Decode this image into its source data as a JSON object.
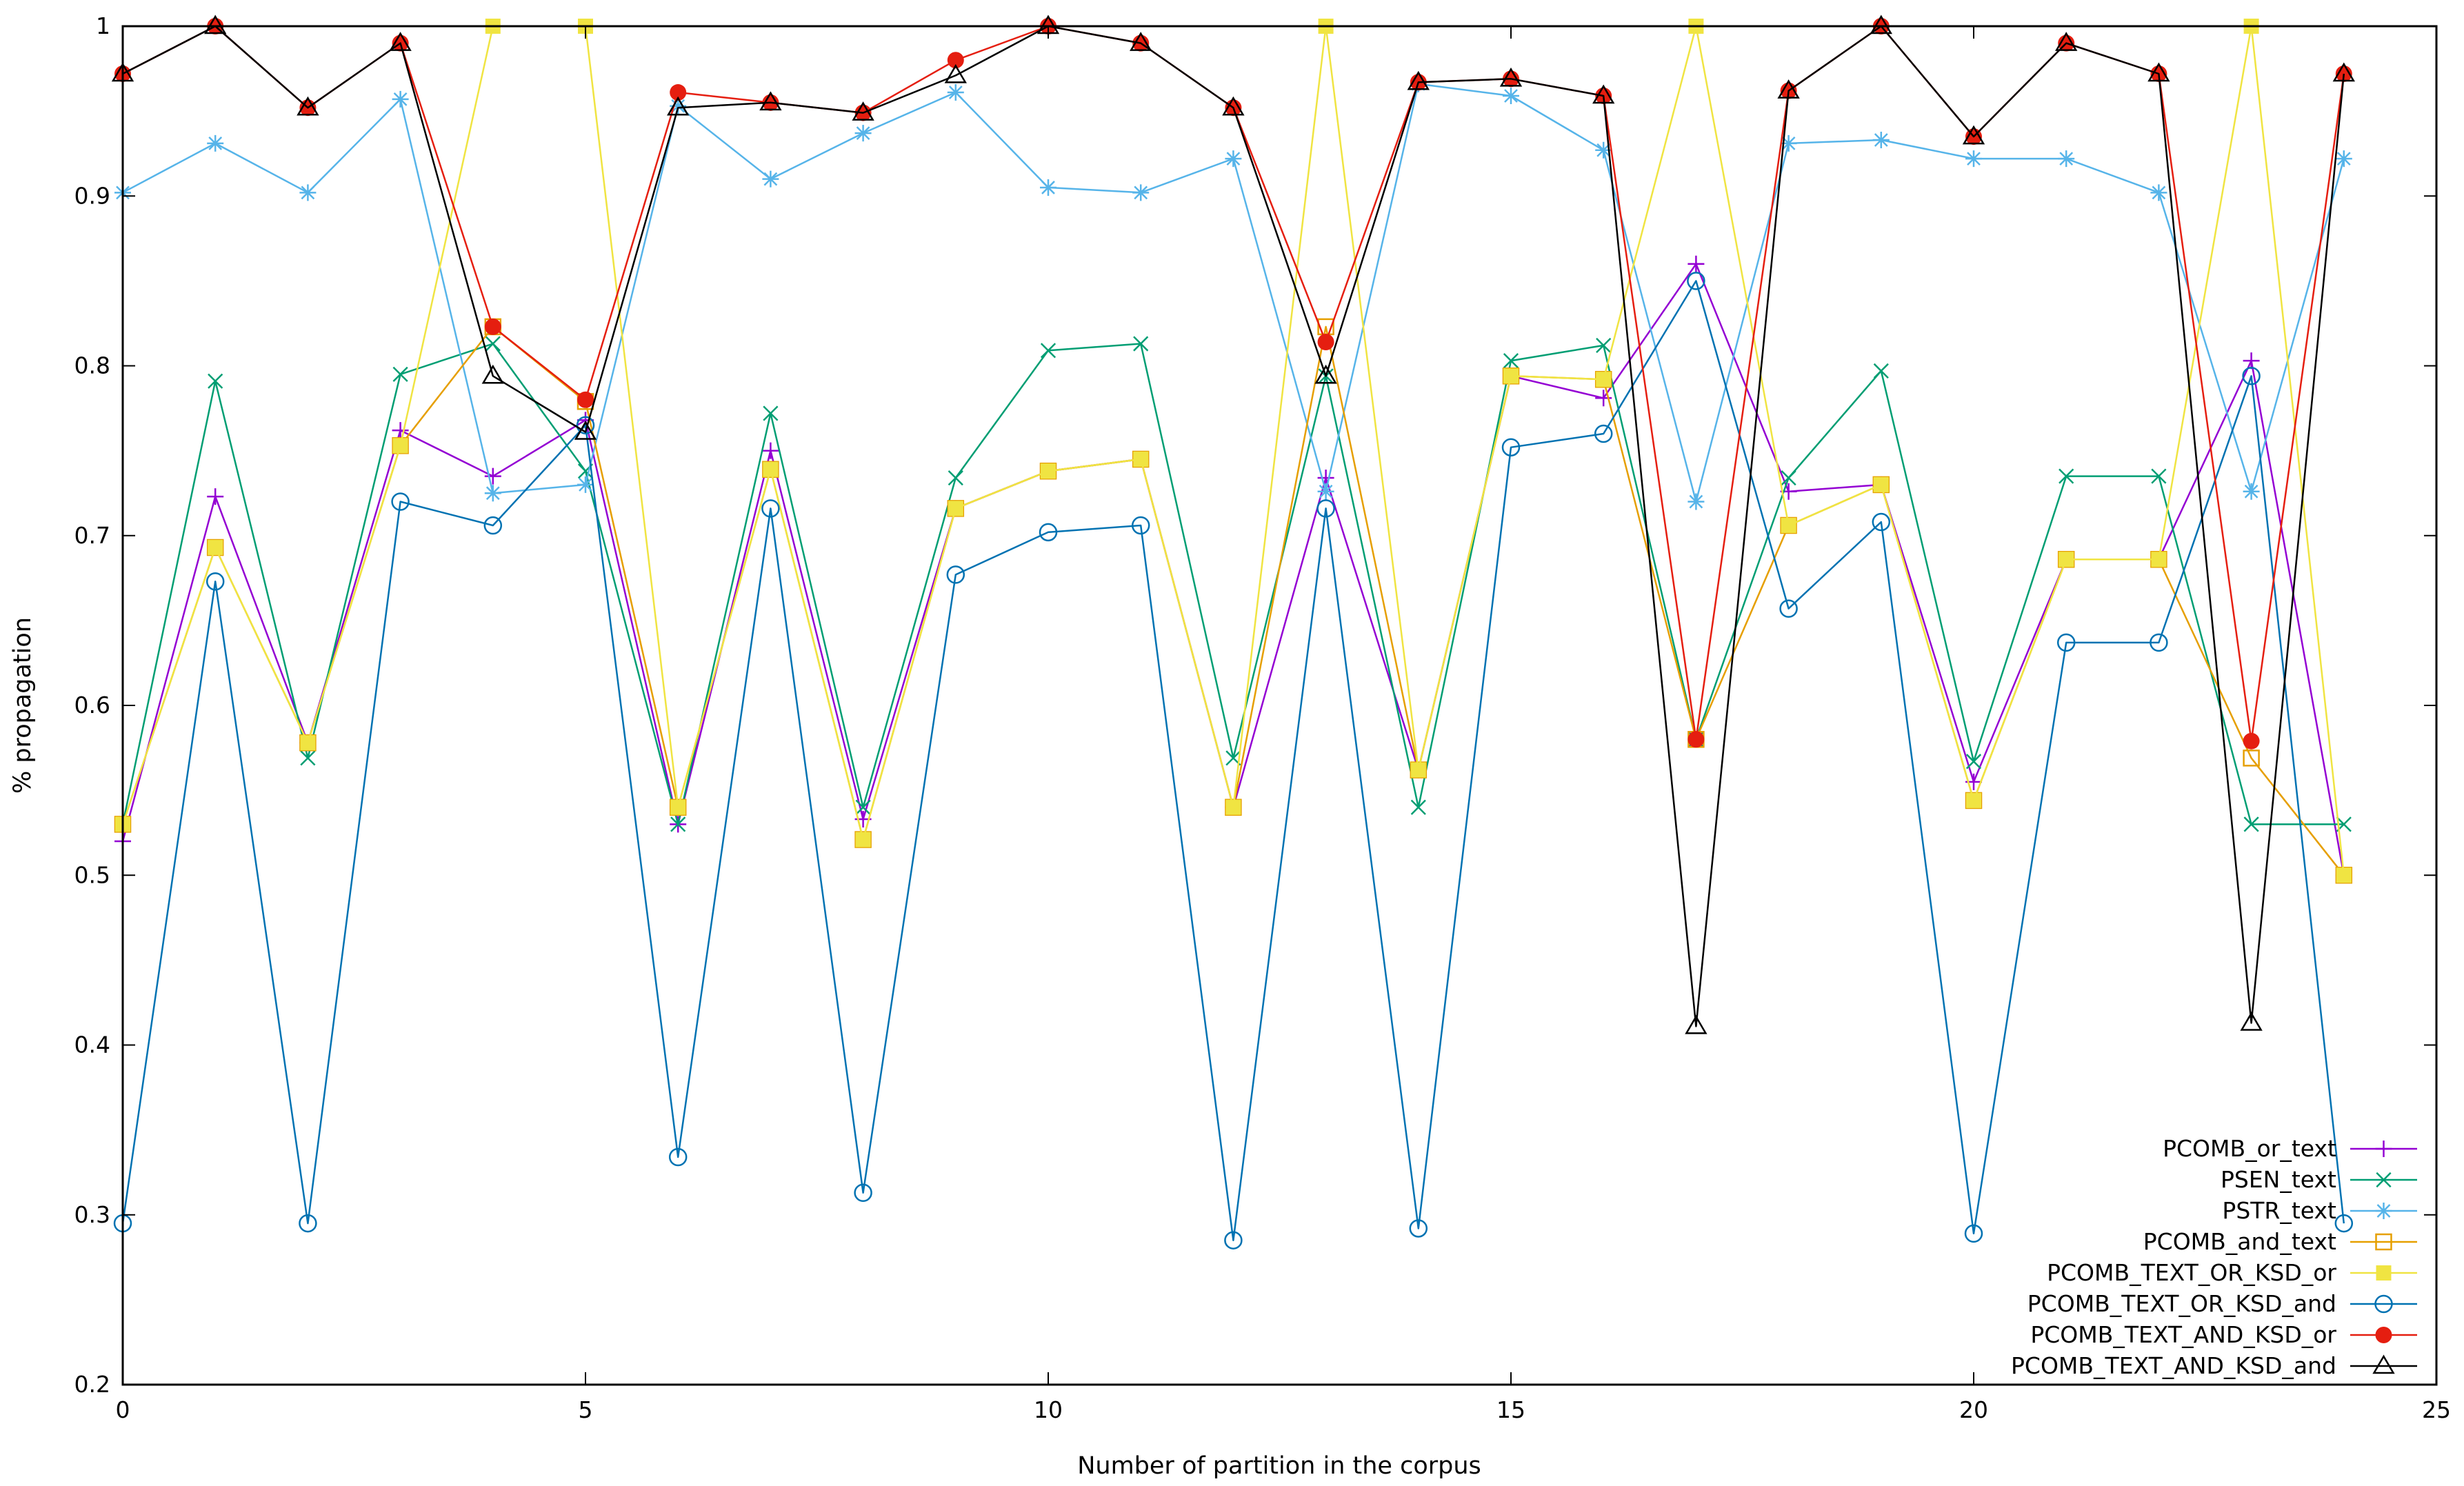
{
  "chart_data": {
    "type": "line",
    "title": "",
    "xlabel": "Number of partition in the corpus",
    "ylabel": "% propagation",
    "xlim": [
      0,
      25
    ],
    "ylim": [
      0.2,
      1
    ],
    "x_ticks": [
      0,
      5,
      10,
      15,
      20,
      25
    ],
    "x_tick_labels": [
      "0",
      "5",
      "10",
      "15",
      "20",
      "25"
    ],
    "y_ticks": [
      0.2,
      0.3,
      0.4,
      0.5,
      0.6,
      0.7,
      0.8,
      0.9,
      1
    ],
    "y_tick_labels": [
      "0.2",
      "0.3",
      "0.4",
      "0.5",
      "0.6",
      "0.7",
      "0.8",
      "0.9",
      "1"
    ],
    "grid": false,
    "legend_position": "bottom-right",
    "x": [
      0,
      1,
      2,
      3,
      4,
      5,
      6,
      7,
      8,
      9,
      10,
      11,
      12,
      13,
      14,
      15,
      16,
      17,
      18,
      19,
      20,
      21,
      22,
      23,
      24
    ],
    "series": [
      {
        "name": "PCOMB_or_text",
        "color": "#9400d3",
        "marker": "plus",
        "values": [
          0.52,
          0.723,
          0.578,
          0.762,
          0.735,
          0.768,
          0.53,
          0.75,
          0.533,
          0.716,
          0.738,
          0.745,
          0.54,
          0.734,
          0.562,
          0.794,
          0.781,
          0.86,
          0.726,
          0.73,
          0.555,
          0.686,
          0.686,
          0.803,
          0.5
        ]
      },
      {
        "name": "PSEN_text",
        "color": "#009e73",
        "marker": "cross",
        "values": [
          0.53,
          0.791,
          0.569,
          0.795,
          0.813,
          0.738,
          0.53,
          0.772,
          0.54,
          0.734,
          0.809,
          0.813,
          0.569,
          0.794,
          0.54,
          0.803,
          0.812,
          0.58,
          0.734,
          0.797,
          0.567,
          0.735,
          0.735,
          0.53,
          0.53
        ]
      },
      {
        "name": "PSTR_text",
        "color": "#56b4e9",
        "marker": "star",
        "values": [
          0.902,
          0.931,
          0.902,
          0.957,
          0.725,
          0.73,
          0.953,
          0.91,
          0.937,
          0.961,
          0.905,
          0.902,
          0.922,
          0.726,
          0.966,
          0.959,
          0.927,
          0.72,
          0.931,
          0.933,
          0.922,
          0.922,
          0.902,
          0.726,
          0.922
        ]
      },
      {
        "name": "PCOMB_and_text",
        "color": "#e69f00",
        "marker": "square",
        "values": [
          0.53,
          0.693,
          0.578,
          0.753,
          0.823,
          0.779,
          0.54,
          0.739,
          0.521,
          0.716,
          0.738,
          0.745,
          0.54,
          0.823,
          0.562,
          0.794,
          0.792,
          0.58,
          0.706,
          0.73,
          0.544,
          0.686,
          0.686,
          0.569,
          0.5
        ]
      },
      {
        "name": "PCOMB_TEXT_OR_KSD_or",
        "color": "#f0e442",
        "marker": "filled-square",
        "values": [
          0.53,
          0.693,
          0.578,
          0.753,
          1.0,
          1.0,
          0.54,
          0.739,
          0.521,
          0.716,
          0.738,
          0.745,
          0.54,
          1.0,
          0.562,
          0.794,
          0.792,
          1.0,
          0.706,
          0.73,
          0.544,
          0.686,
          0.686,
          1.0,
          0.5
        ]
      },
      {
        "name": "PCOMB_TEXT_OR_KSD_and",
        "color": "#0072b2",
        "marker": "circle",
        "values": [
          0.295,
          0.673,
          0.295,
          0.72,
          0.706,
          0.765,
          0.334,
          0.716,
          0.313,
          0.677,
          0.702,
          0.706,
          0.285,
          0.716,
          0.292,
          0.752,
          0.76,
          0.85,
          0.657,
          0.708,
          0.289,
          0.637,
          0.637,
          0.794,
          0.295
        ]
      },
      {
        "name": "PCOMB_TEXT_AND_KSD_or",
        "color": "#e51e10",
        "marker": "filled-circle",
        "values": [
          0.972,
          1.0,
          0.952,
          0.99,
          0.823,
          0.78,
          0.961,
          0.955,
          0.949,
          0.98,
          1.0,
          0.99,
          0.952,
          0.814,
          0.967,
          0.969,
          0.959,
          0.58,
          0.962,
          1.0,
          0.935,
          0.99,
          0.972,
          0.579,
          0.972
        ]
      },
      {
        "name": "PCOMB_TEXT_AND_KSD_and",
        "color": "#000000",
        "marker": "triangle",
        "values": [
          0.972,
          1.0,
          0.952,
          0.99,
          0.794,
          0.761,
          0.952,
          0.955,
          0.949,
          0.971,
          1.0,
          0.99,
          0.952,
          0.794,
          0.967,
          0.969,
          0.959,
          0.411,
          0.962,
          1.0,
          0.935,
          0.99,
          0.972,
          0.413,
          0.972
        ]
      }
    ]
  }
}
